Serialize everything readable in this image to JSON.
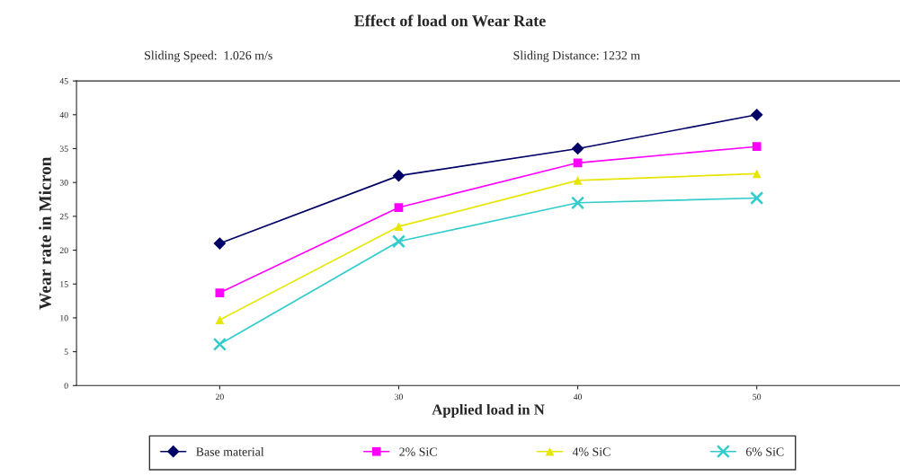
{
  "chart_data": {
    "type": "line",
    "title": "Effect of load on Wear Rate",
    "annotations": [
      "Sliding Speed:  1.026 m/s",
      "Sliding Distance: 1232 m"
    ],
    "xlabel": "Applied load in N",
    "ylabel": "Wear rate in Micron",
    "categories": [
      "20",
      "30",
      "40",
      "50"
    ],
    "series": [
      {
        "name": "Base material",
        "color": "#000066",
        "marker": "diamond",
        "values": [
          21.0,
          31.0,
          35.0,
          40.0
        ]
      },
      {
        "name": "2% SiC",
        "color": "#ff00ff",
        "marker": "square",
        "values": [
          13.7,
          26.3,
          32.9,
          35.3
        ]
      },
      {
        "name": "4% SiC",
        "color": "#e6e600",
        "marker": "triangle",
        "values": [
          9.7,
          23.5,
          30.3,
          31.3
        ]
      },
      {
        "name": "6% SiC",
        "color": "#33cccc",
        "marker": "cross",
        "values": [
          6.1,
          21.3,
          27.0,
          27.7
        ]
      }
    ],
    "ylim": [
      0,
      45
    ],
    "yticks": [
      0,
      5,
      10,
      15,
      20,
      25,
      30,
      35,
      40,
      45
    ],
    "grid": false,
    "legend": "bottom"
  }
}
